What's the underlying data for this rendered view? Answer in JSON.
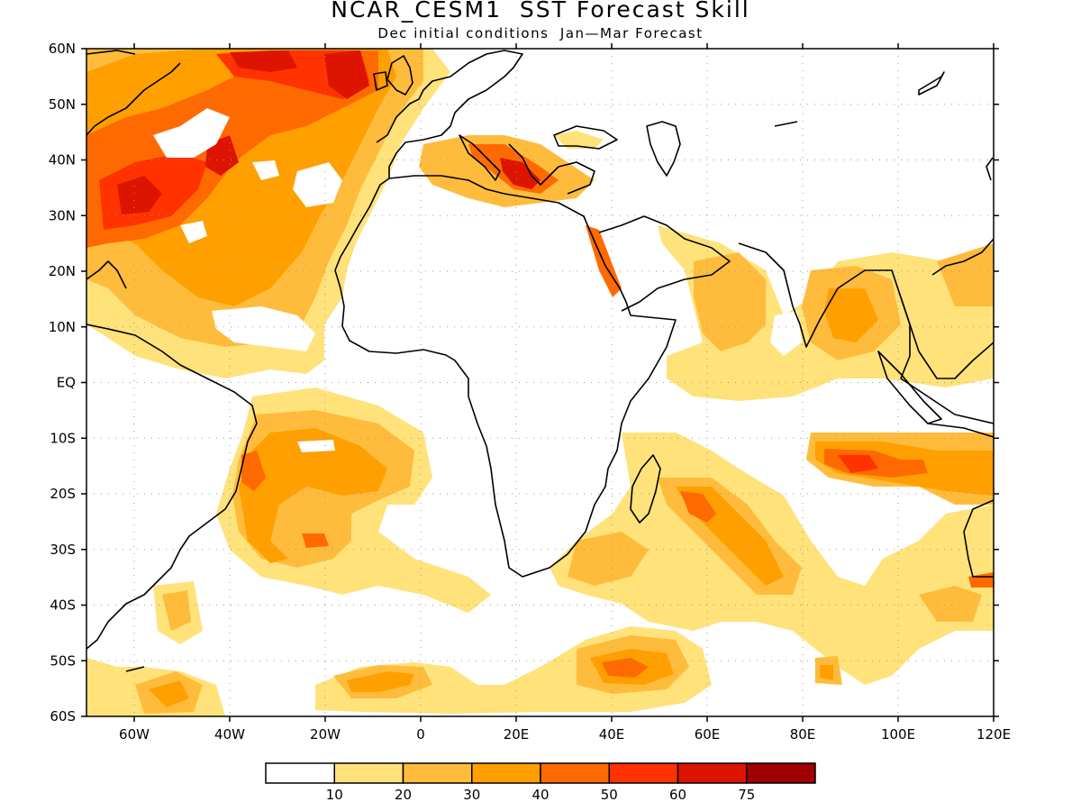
{
  "title": "NCAR_CESM1  SST Forecast Skill",
  "subtitle": "Dec initial conditions  Jan—Mar Forecast",
  "map": {
    "lon_range": [
      -70,
      120
    ],
    "lat_range": [
      -60,
      60
    ],
    "gridlines": "dotted",
    "lat_labels": [
      "60N",
      "50N",
      "40N",
      "30N",
      "20N",
      "10N",
      "EQ",
      "10S",
      "20S",
      "30S",
      "40S",
      "50S",
      "60S"
    ],
    "lon_labels": [
      "60W",
      "40W",
      "20W",
      "0",
      "20E",
      "40E",
      "60E",
      "80E",
      "100E",
      "120E"
    ]
  },
  "legend": {
    "levels": [
      "10",
      "20",
      "30",
      "40",
      "50",
      "60",
      "75"
    ],
    "colors": [
      "#ffffff",
      "#ffe27a",
      "#ffbc3c",
      "#ff9f00",
      "#ff6a00",
      "#ff3200",
      "#dc1400",
      "#a00000"
    ]
  }
}
